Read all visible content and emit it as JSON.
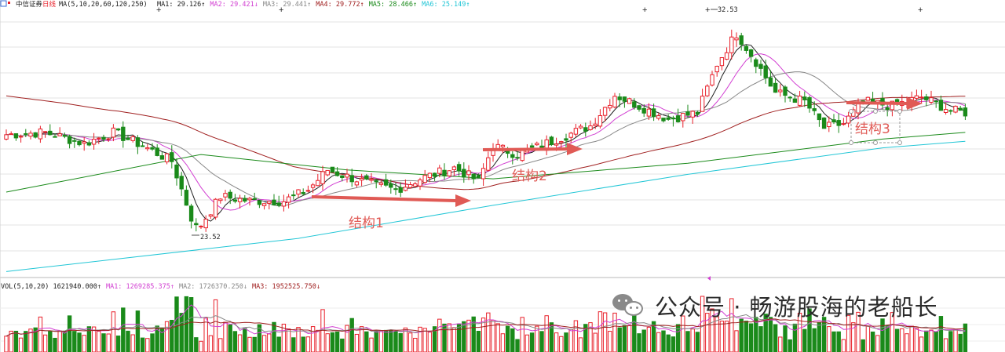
{
  "header": {
    "stock_name": "中信证券",
    "period": "日线",
    "ma_params": "MA(5,10,20,60,120,250)",
    "ma_values": [
      {
        "label": "MA1:",
        "value": "29.126",
        "arrow": "↑",
        "color": "#222222"
      },
      {
        "label": "MA2:",
        "value": "29.421",
        "arrow": "↓",
        "color": "#d23fd2"
      },
      {
        "label": "MA3:",
        "value": "29.441",
        "arrow": "↑",
        "color": "#888888"
      },
      {
        "label": "MA4:",
        "value": "29.772",
        "arrow": "↑",
        "color": "#a02020"
      },
      {
        "label": "MA5:",
        "value": "28.466",
        "arrow": "↑",
        "color": "#1a8a1a"
      },
      {
        "label": "MA6:",
        "value": "25.149",
        "arrow": "↑",
        "color": "#22c6d6"
      }
    ]
  },
  "volume_header": {
    "params": "VOL(5,10,20)",
    "vol_value": "1621940.000",
    "vol_arrow": "↑",
    "ma_values": [
      {
        "label": "MA1:",
        "value": "1269285.375",
        "arrow": "↑",
        "color": "#d23fd2"
      },
      {
        "label": "MA2:",
        "value": "1726370.250",
        "arrow": "↓",
        "color": "#888888"
      },
      {
        "label": "MA3:",
        "value": "1952525.750",
        "arrow": "↓",
        "color": "#a02020"
      }
    ]
  },
  "annotations": {
    "high_label": "32.53",
    "low_label": "23.52",
    "structure1": "结构1",
    "structure2": "结构2",
    "structure3": "结构3"
  },
  "colors": {
    "up": "#e8202a",
    "down": "#1a8a1a",
    "arrow": "#e05a55",
    "ma1": "#222222",
    "ma2": "#d23fd2",
    "ma3": "#888888",
    "ma4": "#a02020",
    "ma5": "#1a8a1a",
    "ma6": "#22c6d6"
  },
  "watermark": {
    "icon": "wechat-icon",
    "text": "公众号 · 畅游股海的老船长"
  },
  "chart_data": {
    "type": "candlestick",
    "x_axis": "trading days (no labels shown)",
    "price_range": [
      21.5,
      33.5
    ],
    "grid": true,
    "anchor_points": [
      {
        "day": 0,
        "close": 27.9
      },
      {
        "day": 8,
        "close": 28.0
      },
      {
        "day": 16,
        "close": 27.5
      },
      {
        "day": 22,
        "close": 28.0
      },
      {
        "day": 28,
        "close": 27.4
      },
      {
        "day": 34,
        "close": 26.7
      },
      {
        "day": 39,
        "close": 23.5
      },
      {
        "day": 44,
        "close": 25.1
      },
      {
        "day": 50,
        "close": 24.9
      },
      {
        "day": 57,
        "close": 24.9
      },
      {
        "day": 62,
        "close": 25.4
      },
      {
        "day": 66,
        "close": 26.3
      },
      {
        "day": 70,
        "close": 26.0
      },
      {
        "day": 76,
        "close": 25.6
      },
      {
        "day": 80,
        "close": 25.4
      },
      {
        "day": 85,
        "close": 25.9
      },
      {
        "day": 92,
        "close": 26.4
      },
      {
        "day": 97,
        "close": 25.8
      },
      {
        "day": 100,
        "close": 27.4
      },
      {
        "day": 105,
        "close": 27.0
      },
      {
        "day": 112,
        "close": 27.6
      },
      {
        "day": 120,
        "close": 28.3
      },
      {
        "day": 125,
        "close": 29.7
      },
      {
        "day": 130,
        "close": 29.2
      },
      {
        "day": 136,
        "close": 28.6
      },
      {
        "day": 142,
        "close": 28.9
      },
      {
        "day": 146,
        "close": 31.1
      },
      {
        "day": 150,
        "close": 32.5
      },
      {
        "day": 154,
        "close": 31.2
      },
      {
        "day": 158,
        "close": 29.8
      },
      {
        "day": 164,
        "close": 29.4
      },
      {
        "day": 168,
        "close": 28.2
      },
      {
        "day": 172,
        "close": 28.4
      },
      {
        "day": 176,
        "close": 29.4
      },
      {
        "day": 182,
        "close": 29.2
      },
      {
        "day": 188,
        "close": 29.6
      },
      {
        "day": 194,
        "close": 29.0
      },
      {
        "day": 197,
        "close": 28.9
      }
    ],
    "marked_high": 32.53,
    "marked_low": 23.52
  }
}
